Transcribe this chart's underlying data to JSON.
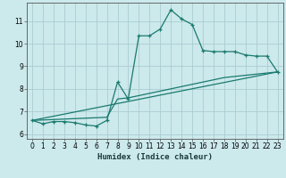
{
  "xlabel": "Humidex (Indice chaleur)",
  "background_color": "#cce9ec",
  "grid_color": "#aacdd2",
  "line_color": "#1a7a6e",
  "xlim": [
    -0.5,
    23.5
  ],
  "ylim": [
    5.8,
    11.8
  ],
  "yticks": [
    6,
    7,
    8,
    9,
    10,
    11
  ],
  "xticks": [
    0,
    1,
    2,
    3,
    4,
    5,
    6,
    7,
    8,
    9,
    10,
    11,
    12,
    13,
    14,
    15,
    16,
    17,
    18,
    19,
    20,
    21,
    22,
    23
  ],
  "curve1_x": [
    0,
    1,
    2,
    3,
    4,
    5,
    6,
    7,
    8,
    9,
    10,
    11,
    12,
    13,
    14,
    15,
    16,
    17,
    18,
    19,
    20,
    21,
    22,
    23
  ],
  "curve1_y": [
    6.6,
    6.45,
    6.55,
    6.55,
    6.5,
    6.4,
    6.35,
    6.6,
    8.3,
    7.55,
    10.35,
    10.35,
    10.65,
    11.5,
    11.1,
    10.85,
    9.7,
    9.65,
    9.65,
    9.65,
    9.5,
    9.45,
    9.45,
    8.75
  ],
  "curve2_x": [
    0,
    1,
    2,
    3,
    4,
    5,
    6,
    7,
    8,
    9,
    10,
    11,
    12,
    13,
    14,
    15,
    16,
    17,
    18,
    19,
    20,
    21,
    22,
    23
  ],
  "curve2_y": [
    6.6,
    6.62,
    6.64,
    6.66,
    6.68,
    6.7,
    6.72,
    6.74,
    7.55,
    7.6,
    7.7,
    7.8,
    7.9,
    8.0,
    8.1,
    8.2,
    8.3,
    8.4,
    8.5,
    8.55,
    8.6,
    8.65,
    8.7,
    8.75
  ],
  "curve3_x": [
    0,
    23
  ],
  "curve3_y": [
    6.6,
    8.75
  ]
}
